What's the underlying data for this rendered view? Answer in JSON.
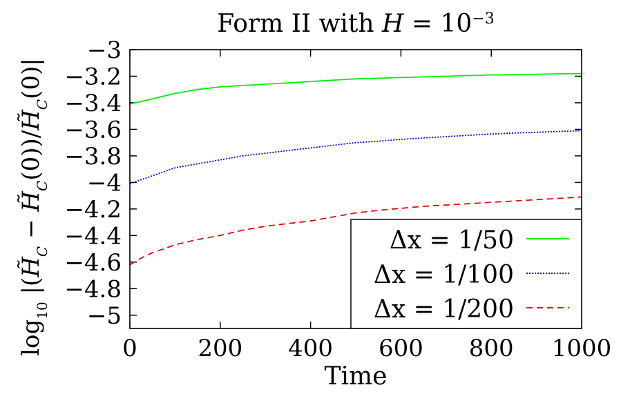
{
  "chart_data": {
    "type": "line",
    "title": "Form II with H = 10^-3",
    "xlabel": "Time",
    "ylabel": "log10 |(H̃C − H̃C(0))/H̃C(0)|",
    "xlim": [
      0,
      1000
    ],
    "ylim": [
      -5.1,
      -3.0
    ],
    "xticks": [
      0,
      200,
      400,
      600,
      800,
      1000
    ],
    "xtick_labels": [
      "0",
      "200",
      "400",
      "600",
      "800",
      "1000"
    ],
    "yticks": [
      -3.0,
      -3.2,
      -3.4,
      -3.6,
      -3.8,
      -4.0,
      -4.2,
      -4.4,
      -4.6,
      -4.8,
      -5.0
    ],
    "ytick_labels": [
      "−3",
      "−3.2",
      "−3.4",
      "−3.6",
      "−3.8",
      "−4",
      "−4.2",
      "−4.4",
      "−4.6",
      "−4.8",
      "−5"
    ],
    "grid": false,
    "legend_position": "bottom-right",
    "series": [
      {
        "name": "Δx = 1/50",
        "color": "#00ee00",
        "dash": "solid",
        "x": [
          0,
          25,
          50,
          75,
          100,
          150,
          200,
          250,
          300,
          350,
          400,
          450,
          500,
          550,
          600,
          650,
          700,
          750,
          800,
          850,
          900,
          950,
          1000
        ],
        "y": [
          -3.41,
          -3.39,
          -3.37,
          -3.35,
          -3.33,
          -3.3,
          -3.28,
          -3.27,
          -3.26,
          -3.25,
          -3.24,
          -3.23,
          -3.22,
          -3.215,
          -3.21,
          -3.205,
          -3.2,
          -3.195,
          -3.19,
          -3.188,
          -3.185,
          -3.182,
          -3.18
        ]
      },
      {
        "name": "Δx = 1/100",
        "color": "#0000ee",
        "dash": "dotted",
        "x": [
          0,
          25,
          50,
          75,
          100,
          150,
          200,
          250,
          300,
          350,
          400,
          450,
          500,
          550,
          600,
          650,
          700,
          750,
          800,
          850,
          900,
          950,
          1000
        ],
        "y": [
          -4.01,
          -3.98,
          -3.95,
          -3.92,
          -3.89,
          -3.86,
          -3.83,
          -3.8,
          -3.78,
          -3.76,
          -3.74,
          -3.72,
          -3.7,
          -3.69,
          -3.675,
          -3.665,
          -3.655,
          -3.645,
          -3.635,
          -3.628,
          -3.622,
          -3.616,
          -3.61
        ]
      },
      {
        "name": "Δx = 1/200",
        "color": "#ee0000",
        "dash": "dashed",
        "x": [
          0,
          25,
          50,
          75,
          100,
          150,
          200,
          250,
          300,
          350,
          400,
          450,
          500,
          550,
          600,
          650,
          700,
          750,
          800,
          850,
          900,
          950,
          1000
        ],
        "y": [
          -4.62,
          -4.57,
          -4.53,
          -4.5,
          -4.47,
          -4.43,
          -4.4,
          -4.36,
          -4.33,
          -4.31,
          -4.29,
          -4.26,
          -4.23,
          -4.21,
          -4.195,
          -4.18,
          -4.17,
          -4.16,
          -4.15,
          -4.14,
          -4.13,
          -4.12,
          -4.11
        ]
      }
    ]
  }
}
